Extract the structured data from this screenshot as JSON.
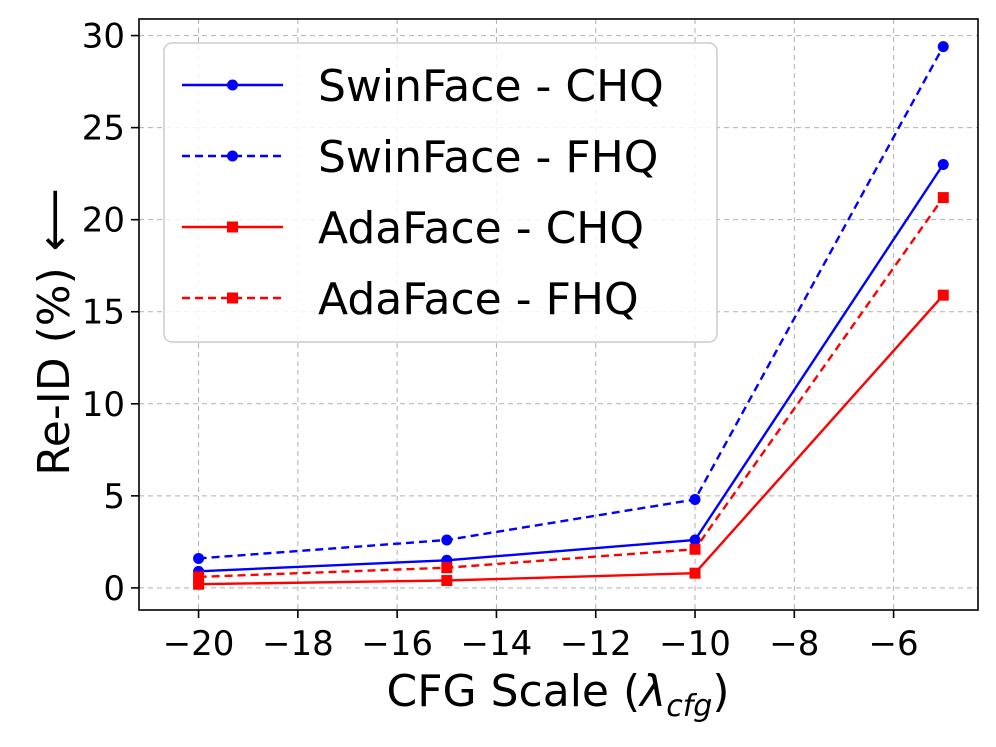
{
  "chart_data": {
    "type": "line",
    "title": "",
    "xlabel": "CFG Scale (",
    "xlabel_symbol": "λ",
    "xlabel_subscript": "cfg",
    "xlabel_suffix": ")",
    "ylabel": "Re-ID (%)",
    "ylabel_arrow": "⟵",
    "xlim": [
      -21.2,
      -4.3
    ],
    "ylim": [
      -1.2,
      30.9
    ],
    "xticks": [
      -20,
      -18,
      -16,
      -14,
      -12,
      -10,
      -8,
      -6
    ],
    "xtick_labels": [
      "−20",
      "−18",
      "−16",
      "−14",
      "−12",
      "−10",
      "−8",
      "−6"
    ],
    "yticks": [
      0,
      5,
      10,
      15,
      20,
      25,
      30
    ],
    "ytick_labels": [
      "0",
      "5",
      "10",
      "15",
      "20",
      "25",
      "30"
    ],
    "grid": true,
    "legend_position": "top-left",
    "x": [
      -20,
      -15,
      -10,
      -5
    ],
    "series": [
      {
        "name": "SwinFace - CHQ",
        "values": [
          0.9,
          1.5,
          2.6,
          23.0
        ],
        "color": "#0000ff",
        "linestyle": "solid",
        "marker": "circle"
      },
      {
        "name": "SwinFace - FHQ",
        "values": [
          1.6,
          2.6,
          4.8,
          29.4
        ],
        "color": "#0000ff",
        "linestyle": "dashed",
        "marker": "circle"
      },
      {
        "name": "AdaFace - CHQ",
        "values": [
          0.2,
          0.4,
          0.8,
          15.9
        ],
        "color": "#ff0000",
        "linestyle": "solid",
        "marker": "square"
      },
      {
        "name": "AdaFace - FHQ",
        "values": [
          0.6,
          1.1,
          2.1,
          21.2
        ],
        "color": "#ff0000",
        "linestyle": "dashed",
        "marker": "square"
      }
    ]
  }
}
